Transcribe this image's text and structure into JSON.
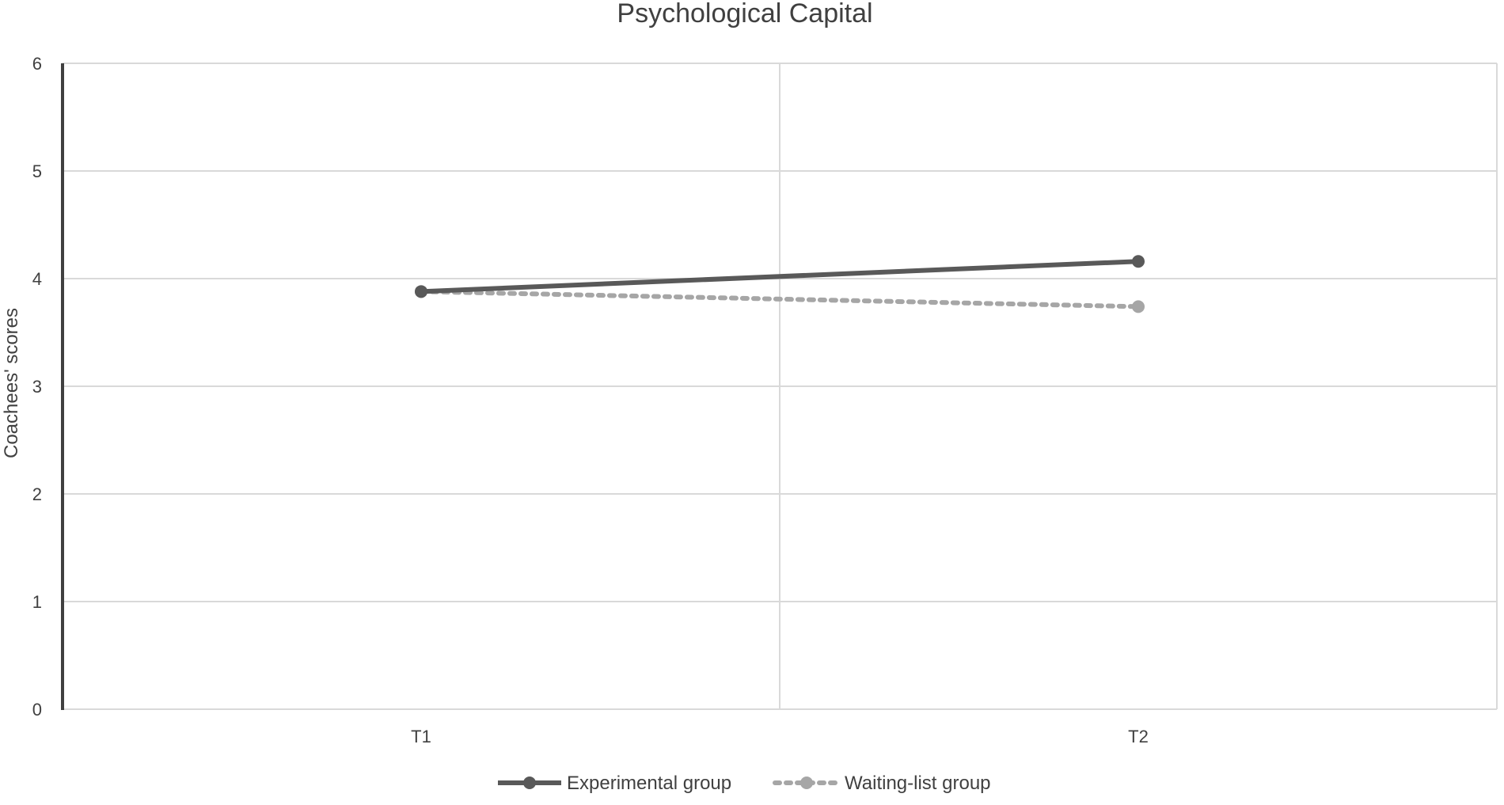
{
  "chart_data": {
    "type": "line",
    "title": "Psychological Capital",
    "ylabel": "Coachees' scores",
    "xlabel": "",
    "categories": [
      "T1",
      "T2"
    ],
    "ylim": [
      0,
      6
    ],
    "yticks": [
      "0",
      "1",
      "2",
      "3",
      "4",
      "5",
      "6"
    ],
    "grid": true,
    "legend_position": "bottom",
    "series": [
      {
        "name": "Experimental group",
        "values": [
          3.88,
          4.16
        ],
        "color": "#595959",
        "style": "solid"
      },
      {
        "name": "Waiting-list group",
        "values": [
          3.88,
          3.74
        ],
        "color": "#a6a6a6",
        "style": "dotted"
      }
    ]
  }
}
